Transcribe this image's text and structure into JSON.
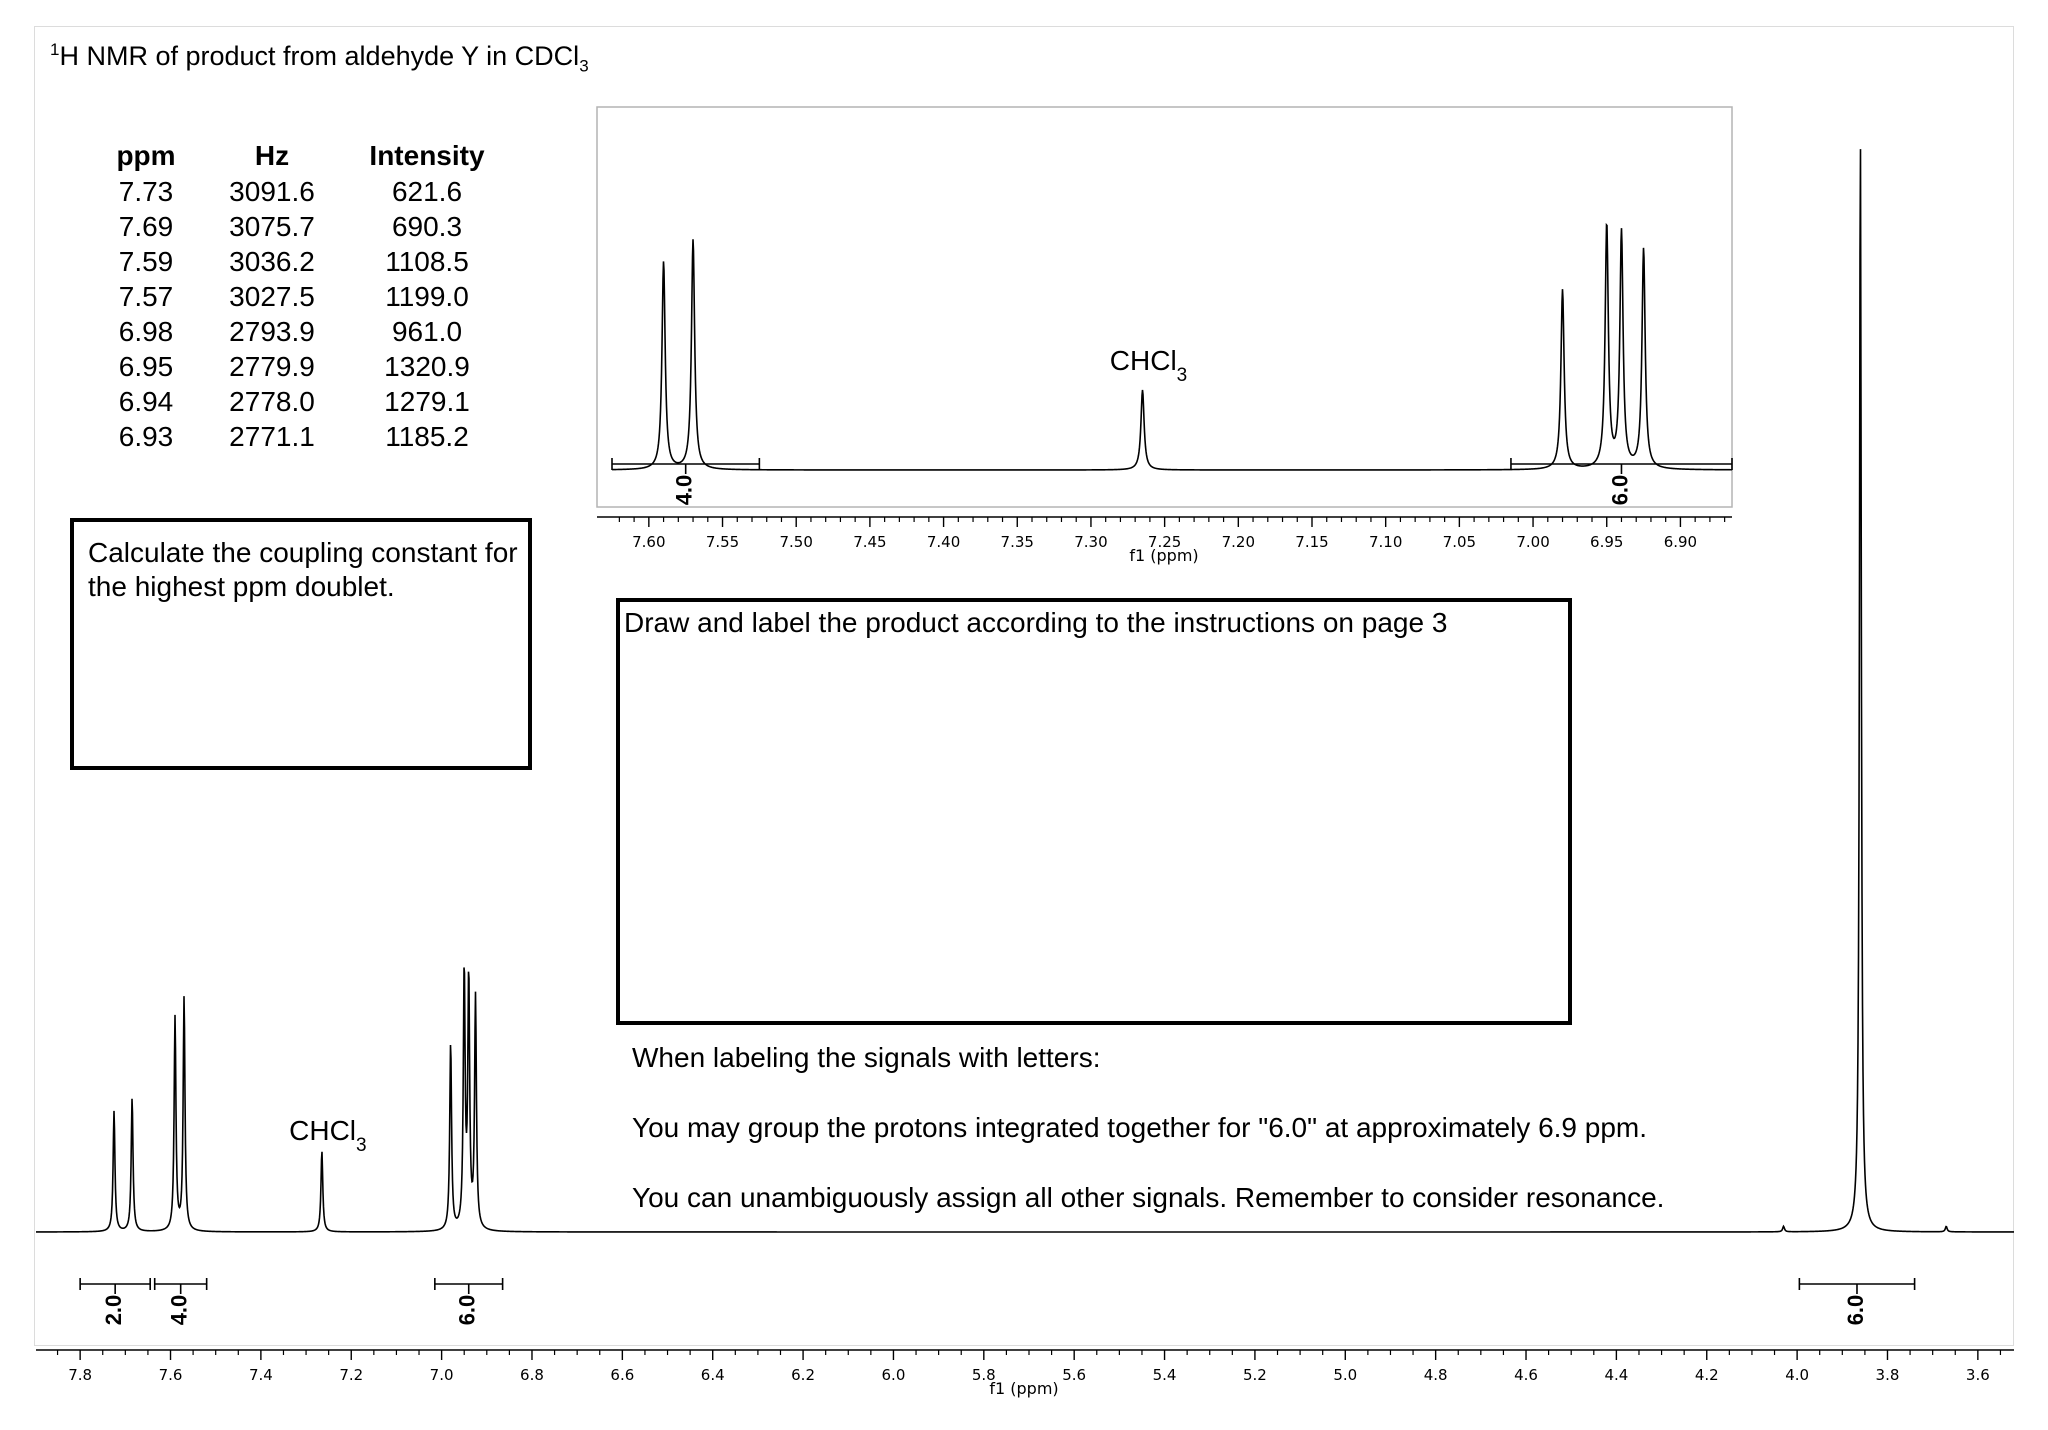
{
  "title": {
    "prefix_sup": "1",
    "text_main": "H NMR of product from aldehyde Y in CDCl",
    "suffix_sub": "3"
  },
  "peak_table": {
    "headers": [
      "ppm",
      "Hz",
      "Intensity"
    ],
    "rows": [
      [
        "7.73",
        "3091.6",
        "621.6"
      ],
      [
        "7.69",
        "3075.7",
        "690.3"
      ],
      [
        "7.59",
        "3036.2",
        "1108.5"
      ],
      [
        "7.57",
        "3027.5",
        "1199.0"
      ],
      [
        "6.98",
        "2793.9",
        "961.0"
      ],
      [
        "6.95",
        "2779.9",
        "1320.9"
      ],
      [
        "6.94",
        "2778.0",
        "1279.1"
      ],
      [
        "6.93",
        "2771.1",
        "1185.2"
      ]
    ]
  },
  "coupling_box_text": "Calculate the coupling constant for the highest ppm doublet.",
  "draw_box_text": "Draw and label the product according to the instructions on page 3",
  "notes": [
    "When labeling the signals with letters:",
    "You may group the protons integrated together for \"6.0\" at approximately 6.9 ppm.",
    "You can unambiguously assign all other signals. Remember to consider resonance."
  ],
  "colors": {
    "line": "#000000",
    "frame": "#dcdcdc",
    "inset_frame": "#b4b4b4"
  },
  "chart_data": [
    {
      "type": "line",
      "name": "main-spectrum",
      "xlabel": "f1 (ppm)",
      "ylabel": "",
      "xlim": [
        7.88,
        3.52
      ],
      "x_reversed": true,
      "ticks": [
        "7.8",
        "7.6",
        "7.4",
        "7.2",
        "7.0",
        "6.8",
        "6.6",
        "6.4",
        "6.2",
        "6.0",
        "5.8",
        "5.6",
        "5.4",
        "5.2",
        "5.0",
        "4.8",
        "4.6",
        "4.4",
        "4.2",
        "4.0",
        "3.8",
        "3.6"
      ],
      "peaks": [
        {
          "ppm": 7.725,
          "height": 0.11
        },
        {
          "ppm": 7.685,
          "height": 0.122
        },
        {
          "ppm": 7.59,
          "height": 0.195
        },
        {
          "ppm": 7.57,
          "height": 0.213
        },
        {
          "ppm": 7.265,
          "height": 0.074
        },
        {
          "ppm": 6.98,
          "height": 0.171
        },
        {
          "ppm": 6.95,
          "height": 0.235
        },
        {
          "ppm": 6.94,
          "height": 0.227
        },
        {
          "ppm": 6.925,
          "height": 0.211
        },
        {
          "ppm": 4.03,
          "height": 0.005
        },
        {
          "ppm": 3.86,
          "height": 1.0
        },
        {
          "ppm": 3.67,
          "height": 0.005
        }
      ],
      "annotations": [
        {
          "text": "CHCl",
          "sub": "3",
          "ppm": 7.265
        }
      ],
      "integrals": [
        {
          "from": 7.8,
          "to": 7.645,
          "value": "2.0"
        },
        {
          "from": 7.635,
          "to": 7.52,
          "value": "4.0"
        },
        {
          "from": 7.015,
          "to": 6.865,
          "value": "6.0"
        },
        {
          "from": 3.995,
          "to": 3.74,
          "value": "6.0"
        }
      ]
    },
    {
      "type": "line",
      "name": "inset-spectrum",
      "xlabel": "f1 (ppm)",
      "ylabel": "",
      "xlim": [
        7.625,
        6.865
      ],
      "x_reversed": true,
      "ticks": [
        "7.60",
        "7.55",
        "7.50",
        "7.45",
        "7.40",
        "7.35",
        "7.30",
        "7.25",
        "7.20",
        "7.15",
        "7.10",
        "7.05",
        "7.00",
        "6.95",
        "6.90"
      ],
      "peaks": [
        {
          "ppm": 7.59,
          "height": 0.52
        },
        {
          "ppm": 7.57,
          "height": 0.575
        },
        {
          "ppm": 7.265,
          "height": 0.2
        },
        {
          "ppm": 6.98,
          "height": 0.45
        },
        {
          "ppm": 6.95,
          "height": 0.61
        },
        {
          "ppm": 6.94,
          "height": 0.59
        },
        {
          "ppm": 6.925,
          "height": 0.55
        }
      ],
      "annotations": [
        {
          "text": "CHCl",
          "sub": "3",
          "ppm": 7.265
        }
      ],
      "integrals": [
        {
          "from": 7.625,
          "to": 7.525,
          "value": "4.0"
        },
        {
          "from": 7.015,
          "to": 6.865,
          "value": "6.0"
        }
      ]
    }
  ]
}
